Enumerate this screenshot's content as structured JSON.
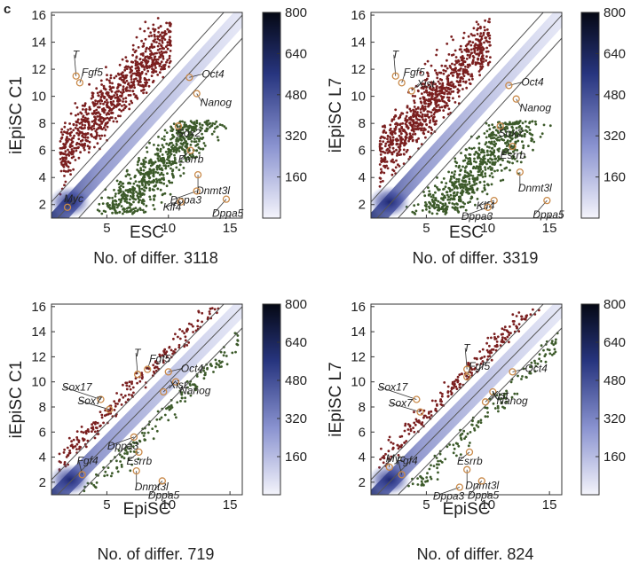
{
  "panel_letter": "c",
  "colorbar_ticks": [
    "800",
    "640",
    "480",
    "320",
    "160"
  ],
  "colors": {
    "up": "#7a1f1f",
    "down": "#3c5a2a",
    "density": "#2f3f9a",
    "marker": "#c98a4a"
  },
  "chart_data": [
    {
      "type": "scatter",
      "xlabel": "ESC",
      "ylabel": "iEpiSC C1",
      "subtitle": "No. of differ. 3118",
      "xlim": [
        0.5,
        16
      ],
      "ylim": [
        1,
        16.2
      ],
      "xticks": [
        5,
        10,
        15
      ],
      "yticks": [
        2,
        4,
        6,
        8,
        10,
        12,
        14,
        16
      ],
      "n_different": 3118,
      "genes": [
        {
          "name": "T",
          "x": 2.5,
          "y": 11.5
        },
        {
          "name": "Fgf5",
          "x": 2.8,
          "y": 11.0
        },
        {
          "name": "Oct4",
          "x": 11.7,
          "y": 11.4
        },
        {
          "name": "Nanog",
          "x": 12.3,
          "y": 10.2
        },
        {
          "name": "Sox2",
          "x": 10.8,
          "y": 7.8
        },
        {
          "name": "Esrrb",
          "x": 11.8,
          "y": 6.0
        },
        {
          "name": "Dnmt3l",
          "x": 12.4,
          "y": 4.2
        },
        {
          "name": "Dppa5",
          "x": 14.7,
          "y": 2.4
        },
        {
          "name": "Dppa3",
          "x": 12.3,
          "y": 3.0
        },
        {
          "name": "Klf4",
          "x": 11.0,
          "y": 2.2
        },
        {
          "name": "Myc",
          "x": 1.8,
          "y": 1.8
        }
      ]
    },
    {
      "type": "scatter",
      "xlabel": "ESC",
      "ylabel": "iEpiSC L7",
      "subtitle": "No. of differ. 3319",
      "xlim": [
        0.5,
        16
      ],
      "ylim": [
        1,
        16.2
      ],
      "xticks": [
        5,
        10,
        15
      ],
      "yticks": [
        2,
        4,
        6,
        8,
        10,
        12,
        14,
        16
      ],
      "n_different": 3319,
      "genes": [
        {
          "name": "T",
          "x": 2.5,
          "y": 11.5
        },
        {
          "name": "Fgf5",
          "x": 3.0,
          "y": 11.0
        },
        {
          "name": "Xist",
          "x": 3.8,
          "y": 10.4
        },
        {
          "name": "Oct4",
          "x": 11.7,
          "y": 10.8
        },
        {
          "name": "Nanog",
          "x": 12.3,
          "y": 9.8
        },
        {
          "name": "Sox2",
          "x": 11.0,
          "y": 7.8
        },
        {
          "name": "Esrrb",
          "x": 12.0,
          "y": 6.3
        },
        {
          "name": "Dnmt3l",
          "x": 12.6,
          "y": 4.4
        },
        {
          "name": "Dppa5",
          "x": 14.8,
          "y": 2.3
        },
        {
          "name": "Klf4",
          "x": 10.5,
          "y": 2.3
        },
        {
          "name": "Dppa3",
          "x": 10.0,
          "y": 1.8
        }
      ]
    },
    {
      "type": "scatter",
      "xlabel": "EpiSC",
      "ylabel": "iEpiSC C1",
      "subtitle": "No. of differ. 719",
      "xlim": [
        0.5,
        16
      ],
      "ylim": [
        1,
        16.2
      ],
      "xticks": [
        5,
        10,
        15
      ],
      "yticks": [
        2,
        4,
        6,
        8,
        10,
        12,
        14,
        16
      ],
      "n_different": 719,
      "genes": [
        {
          "name": "Fgf5",
          "x": 8.3,
          "y": 11.0
        },
        {
          "name": "T",
          "x": 7.5,
          "y": 10.6
        },
        {
          "name": "Sox17",
          "x": 4.5,
          "y": 8.6
        },
        {
          "name": "Oct4",
          "x": 10.0,
          "y": 10.8
        },
        {
          "name": "Sox7",
          "x": 5.2,
          "y": 7.8
        },
        {
          "name": "Nanog",
          "x": 10.6,
          "y": 10.0
        },
        {
          "name": "Xist",
          "x": 9.6,
          "y": 9.2
        },
        {
          "name": "Dppa3",
          "x": 7.2,
          "y": 5.6
        },
        {
          "name": "Fgf4",
          "x": 3.0,
          "y": 2.6
        },
        {
          "name": "Esrrb",
          "x": 7.6,
          "y": 4.4
        },
        {
          "name": "Dnmt3l",
          "x": 7.4,
          "y": 2.9
        },
        {
          "name": "Dppa5",
          "x": 9.5,
          "y": 2.1
        }
      ]
    },
    {
      "type": "scatter",
      "xlabel": "EpiSC",
      "ylabel": "iEpiSC L7",
      "subtitle": "No. of differ. 824",
      "xlim": [
        0.5,
        16
      ],
      "ylim": [
        1,
        16.2
      ],
      "xticks": [
        5,
        10,
        15
      ],
      "yticks": [
        2,
        4,
        6,
        8,
        10,
        12,
        14,
        16
      ],
      "n_different": 824,
      "genes": [
        {
          "name": "T",
          "x": 8.3,
          "y": 11.0
        },
        {
          "name": "Fgf5",
          "x": 8.3,
          "y": 10.4
        },
        {
          "name": "Sox17",
          "x": 4.2,
          "y": 8.6
        },
        {
          "name": "Sox7",
          "x": 4.5,
          "y": 7.6
        },
        {
          "name": "Oct4",
          "x": 12.0,
          "y": 10.8
        },
        {
          "name": "Nanog",
          "x": 10.4,
          "y": 9.2
        },
        {
          "name": "Xist",
          "x": 9.8,
          "y": 8.4
        },
        {
          "name": "Esrrb",
          "x": 8.5,
          "y": 4.4
        },
        {
          "name": "Fgf4",
          "x": 3.0,
          "y": 2.6
        },
        {
          "name": "Myc",
          "x": 2.0,
          "y": 3.2
        },
        {
          "name": "Dnmt3l",
          "x": 8.3,
          "y": 3.0
        },
        {
          "name": "Dppa5",
          "x": 9.5,
          "y": 2.1
        },
        {
          "name": "Dppa3",
          "x": 7.7,
          "y": 1.6
        }
      ]
    }
  ]
}
